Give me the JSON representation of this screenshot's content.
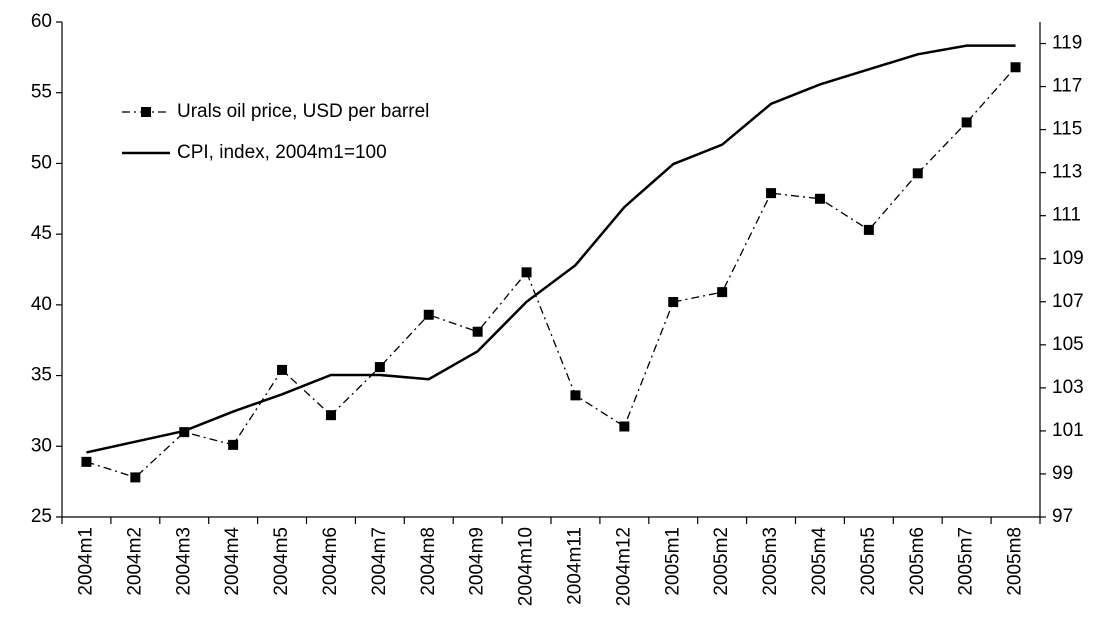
{
  "chart_data": {
    "type": "line",
    "categories": [
      "2004m1",
      "2004m2",
      "2004m3",
      "2004m4",
      "2004m5",
      "2004m6",
      "2004m7",
      "2004m8",
      "2004m9",
      "2004m10",
      "2004m11",
      "2004m12",
      "2005m1",
      "2005m2",
      "2005m3",
      "2005m4",
      "2005m5",
      "2005m6",
      "2005m7",
      "2005m8"
    ],
    "series": [
      {
        "name": "Urals oil price, USD per barrel",
        "color": "#000000",
        "style": "dashdot",
        "marker": "square",
        "values": [
          28.9,
          27.8,
          31.0,
          30.1,
          35.4,
          32.2,
          35.6,
          39.3,
          38.1,
          42.3,
          33.6,
          31.4,
          40.2,
          40.9,
          47.9,
          47.5,
          45.3,
          49.3,
          52.9,
          56.8
        ]
      },
      {
        "name": "CPI, index, 2004m1=100",
        "color": "#000000",
        "style": "solid",
        "axis": "y2",
        "values": [
          100.0,
          100.5,
          101.0,
          101.9,
          102.7,
          103.6,
          103.6,
          103.4,
          104.7,
          107.0,
          108.7,
          111.4,
          113.4,
          114.3,
          116.2,
          117.1,
          117.8,
          118.5,
          118.9,
          118.9
        ]
      }
    ],
    "ylim": [
      25,
      60
    ],
    "yticks": [
      25,
      30,
      35,
      40,
      45,
      50,
      55,
      60
    ],
    "y2lim": [
      97,
      120
    ],
    "y2ticks": [
      97,
      99,
      101,
      103,
      105,
      107,
      109,
      111,
      113,
      115,
      117,
      119
    ],
    "legend": "upper left",
    "grid": false
  }
}
